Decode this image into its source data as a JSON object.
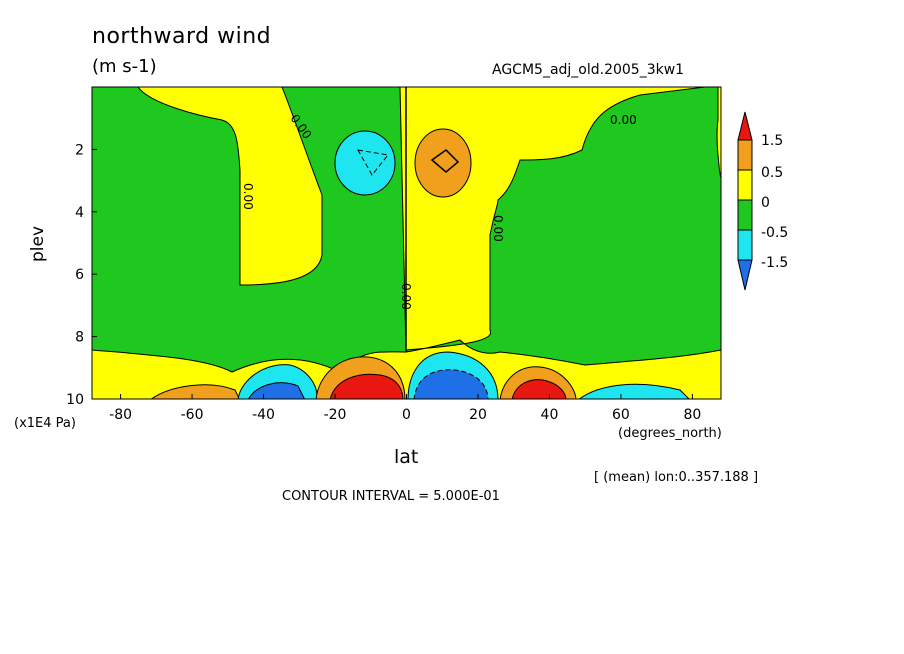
{
  "title": "northward wind",
  "units": "(m s-1)",
  "run_id": "AGCM5_adj_old.2005_3kw1",
  "contour_interval": "CONTOUR INTERVAL = 5.000E-01",
  "average_note": "[ (mean) lon:0..357.188 ]",
  "x_axis": {
    "label": "lat",
    "unit": "(degrees_north)",
    "ticks": [
      "-80",
      "-60",
      "-40",
      "-20",
      "0",
      "20",
      "40",
      "60",
      "80"
    ]
  },
  "y_axis": {
    "label": "plev",
    "unit": "(x1E4 Pa)",
    "ticks": [
      "2",
      "4",
      "6",
      "8",
      "10"
    ]
  },
  "colorbar": {
    "labels": [
      "1.5",
      "0.5",
      "0",
      "-0.5",
      "-1.5"
    ]
  },
  "contour_labels": [
    "0.00",
    "0.00",
    "0.00",
    "0.00",
    "0.00"
  ],
  "colors": {
    "red": "#e8170f",
    "orange": "#f0a01c",
    "yellow": "#ffff00",
    "green": "#1ec81e",
    "cyan": "#1ee6f0",
    "blue": "#1f6fe6"
  },
  "chart_data": {
    "type": "heatmap",
    "title": "northward wind",
    "units": "m s-1",
    "xlabel": "lat",
    "ylabel": "plev",
    "xlim": [
      -88,
      88
    ],
    "ylim": [
      10,
      0
    ],
    "x_ticks": [
      -80,
      -60,
      -40,
      -20,
      0,
      20,
      40,
      60,
      80
    ],
    "y_ticks": [
      2,
      4,
      6,
      8,
      10
    ],
    "contour_interval": 0.5,
    "levels": [
      -1.5,
      -0.5,
      0,
      0.5,
      1.5
    ],
    "features": [
      {
        "kind": "negative",
        "lat": -8,
        "plev": 2.5,
        "min": -1.0
      },
      {
        "kind": "positive",
        "lat": 10,
        "plev": 2.5,
        "max": 1.0
      },
      {
        "kind": "positive",
        "lat": -10,
        "plev": 9.8,
        "max": 2.5
      },
      {
        "kind": "negative",
        "lat": 10,
        "plev": 9.8,
        "min": -2.5
      },
      {
        "kind": "negative",
        "lat": -37,
        "plev": 9.9,
        "min": -1.5
      },
      {
        "kind": "positive",
        "lat": 37,
        "plev": 9.9,
        "max": 1.5
      },
      {
        "kind": "positive",
        "lat": -60,
        "plev": 9.9,
        "max": 0.7
      },
      {
        "kind": "negative",
        "lat": 60,
        "plev": 9.9,
        "min": -0.6
      }
    ]
  }
}
